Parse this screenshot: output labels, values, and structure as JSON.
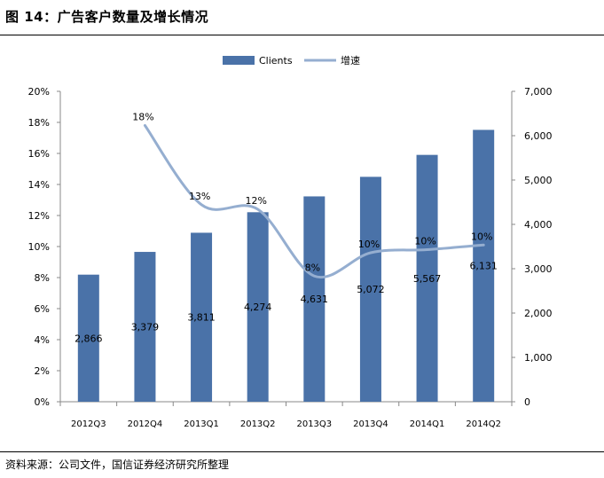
{
  "header": {
    "title": "图 14：广告客户数量及增长情况"
  },
  "footer": {
    "source": "资料来源：公司文件，国信证券经济研究所整理"
  },
  "colors": {
    "bar": "#4a72a8",
    "line": "#95aed0",
    "axis": "#888888",
    "text": "#000000"
  },
  "chart_data": {
    "type": "bar",
    "title": "",
    "xlabel": "",
    "ylabel": "",
    "categories": [
      "2012Q3",
      "2012Q4",
      "2013Q1",
      "2013Q2",
      "2013Q3",
      "2013Q4",
      "2014Q1",
      "2014Q2"
    ],
    "series": [
      {
        "name": "Clients",
        "type": "bar",
        "axis": "right",
        "values": [
          2866,
          3379,
          3811,
          4274,
          4631,
          5072,
          5567,
          6131
        ],
        "labels": [
          "2,866",
          "3,379",
          "3,811",
          "4,274",
          "4,631",
          "5,072",
          "5,567",
          "6,131"
        ]
      },
      {
        "name": "增速",
        "type": "line",
        "axis": "left",
        "values": [
          null,
          18,
          13,
          12,
          8,
          10,
          10,
          10
        ],
        "curve_values": [
          null,
          17.8,
          12.7,
          12.4,
          8.1,
          9.6,
          9.8,
          10.1
        ],
        "labels": [
          "",
          "18%",
          "13%",
          "12%",
          "8%",
          "10%",
          "10%",
          "10%"
        ]
      }
    ],
    "left_axis": {
      "ylim": [
        0,
        20
      ],
      "ticks": [
        "0%",
        "2%",
        "4%",
        "6%",
        "8%",
        "10%",
        "12%",
        "14%",
        "16%",
        "18%",
        "20%"
      ]
    },
    "right_axis": {
      "ylim": [
        0,
        7000
      ],
      "ticks": [
        "0",
        "1,000",
        "2,000",
        "3,000",
        "4,000",
        "5,000",
        "6,000",
        "7,000"
      ]
    },
    "legend": {
      "position": "top-center",
      "entries": [
        "Clients",
        "增速"
      ]
    },
    "grid": false
  }
}
